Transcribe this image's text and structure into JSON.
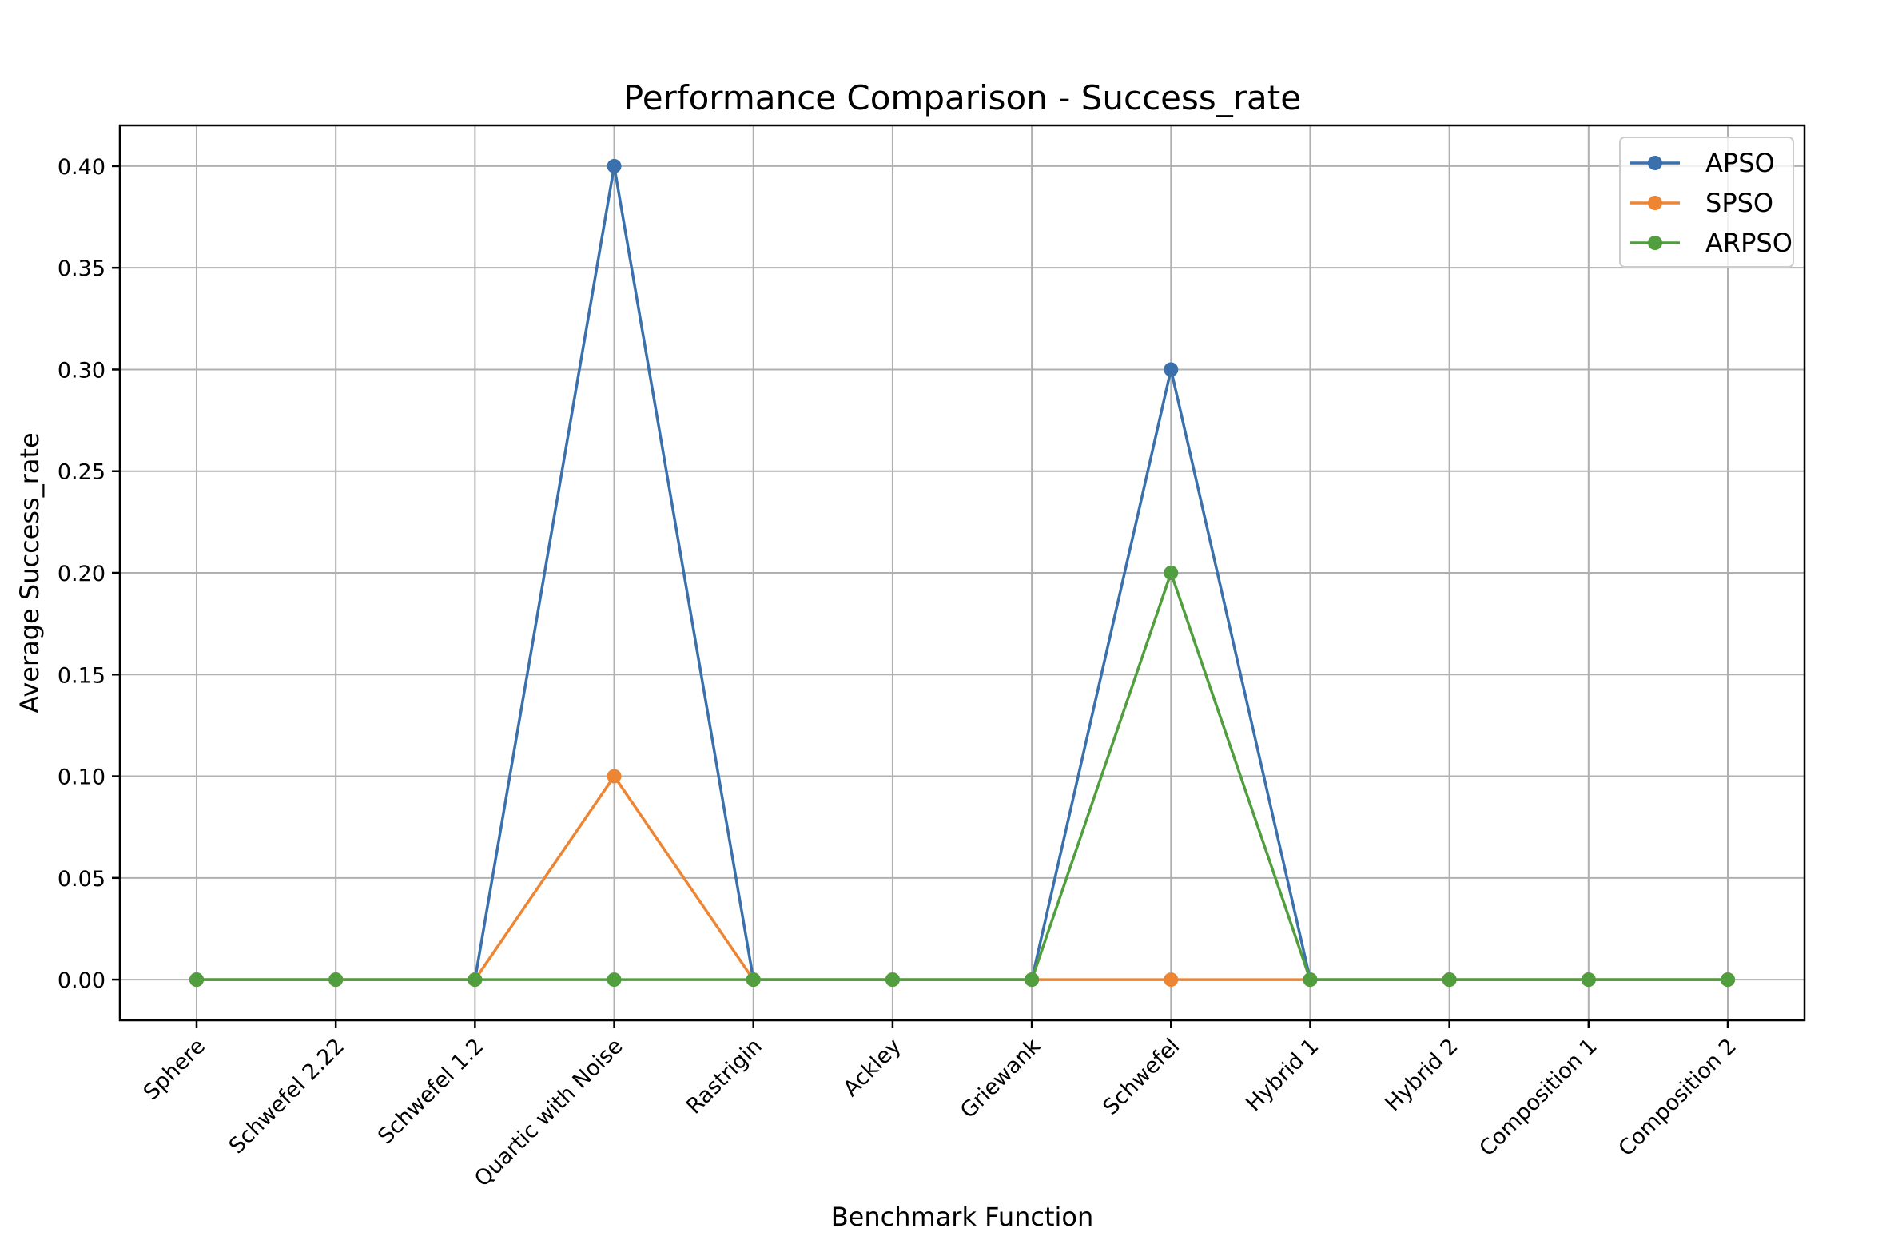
{
  "chart_data": {
    "type": "line",
    "title": "Performance Comparison - Success_rate",
    "xlabel": "Benchmark Function",
    "ylabel": "Average Success_rate",
    "categories": [
      "Sphere",
      "Schwefel 2.22",
      "Schwefel 1.2",
      "Quartic with Noise",
      "Rastrigin",
      "Ackley",
      "Griewank",
      "Schwefel",
      "Hybrid 1",
      "Hybrid 2",
      "Composition 1",
      "Composition 2"
    ],
    "ylim": [
      -0.02,
      0.42
    ],
    "yticks": [
      "0.00",
      "0.05",
      "0.10",
      "0.15",
      "0.20",
      "0.25",
      "0.30",
      "0.35",
      "0.40"
    ],
    "grid": true,
    "legend_position": "top-right",
    "series": [
      {
        "name": "APSO",
        "color": "#3a70ab",
        "marker": "circle",
        "values": [
          0,
          0,
          0,
          0.4,
          0,
          0,
          0,
          0.3,
          0,
          0,
          0,
          0
        ]
      },
      {
        "name": "SPSO",
        "color": "#ee8533",
        "marker": "circle",
        "values": [
          0,
          0,
          0,
          0.1,
          0,
          0,
          0,
          0,
          0,
          0,
          0,
          0
        ]
      },
      {
        "name": "ARPSO",
        "color": "#509e3e",
        "marker": "circle",
        "values": [
          0,
          0,
          0,
          0,
          0,
          0,
          0,
          0.2,
          0,
          0,
          0,
          0
        ]
      }
    ]
  }
}
